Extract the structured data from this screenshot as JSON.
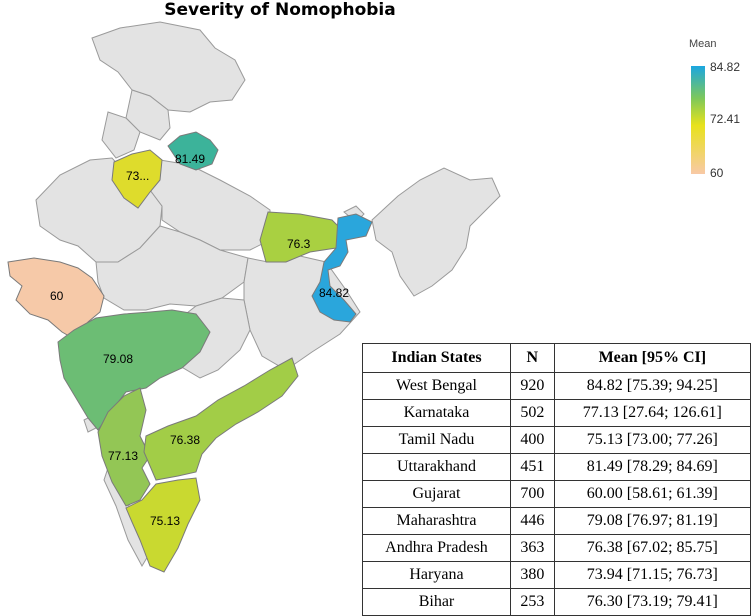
{
  "title": "Severity of Nomophobia",
  "legend": {
    "title": "Mean",
    "max": "84.82",
    "mid": "72.41",
    "min": "60",
    "colors": {
      "low": "#f8c9a6",
      "mid": "#e8e21c",
      "midhigh": "#7ec85a",
      "high": "#1ba6e0"
    }
  },
  "map_labels": {
    "uttarakhand": "81.49",
    "haryana": "73...",
    "bihar": "76.3",
    "west_bengal": "84.82",
    "gujarat": "60",
    "maharashtra": "79.08",
    "karnataka": "77.13",
    "andhra_pradesh": "76.38",
    "tamil_nadu": "75.13"
  },
  "table": {
    "headers": [
      "Indian States",
      "N",
      "Mean [95% CI]"
    ],
    "rows": [
      [
        "West Bengal",
        "920",
        "84.82 [75.39; 94.25]"
      ],
      [
        "Karnataka",
        "502",
        "77.13 [27.64; 126.61]"
      ],
      [
        "Tamil Nadu",
        "400",
        "75.13 [73.00; 77.26]"
      ],
      [
        "Uttarakhand",
        "451",
        "81.49 [78.29; 84.69]"
      ],
      [
        "Gujarat",
        "700",
        "60.00 [58.61; 61.39]"
      ],
      [
        "Maharashtra",
        "446",
        "79.08 [76.97; 81.19]"
      ],
      [
        "Andhra Pradesh",
        "363",
        "76.38 [67.02; 85.75]"
      ],
      [
        "Haryana",
        "380",
        "73.94 [71.15; 76.73]"
      ],
      [
        "Bihar",
        "253",
        "76.30 [73.19; 79.41]"
      ]
    ]
  },
  "state_colors": {
    "base": "#e3e3e3",
    "uttarakhand": "#3cb39a",
    "haryana": "#dedc2c",
    "bihar": "#a9d041",
    "west_bengal": "#2aa6dc",
    "gujarat": "#f6c9a8",
    "maharashtra": "#6cbd74",
    "karnataka": "#93c655",
    "andhra_pradesh": "#a2cd47",
    "tamil_nadu": "#c9d930"
  }
}
